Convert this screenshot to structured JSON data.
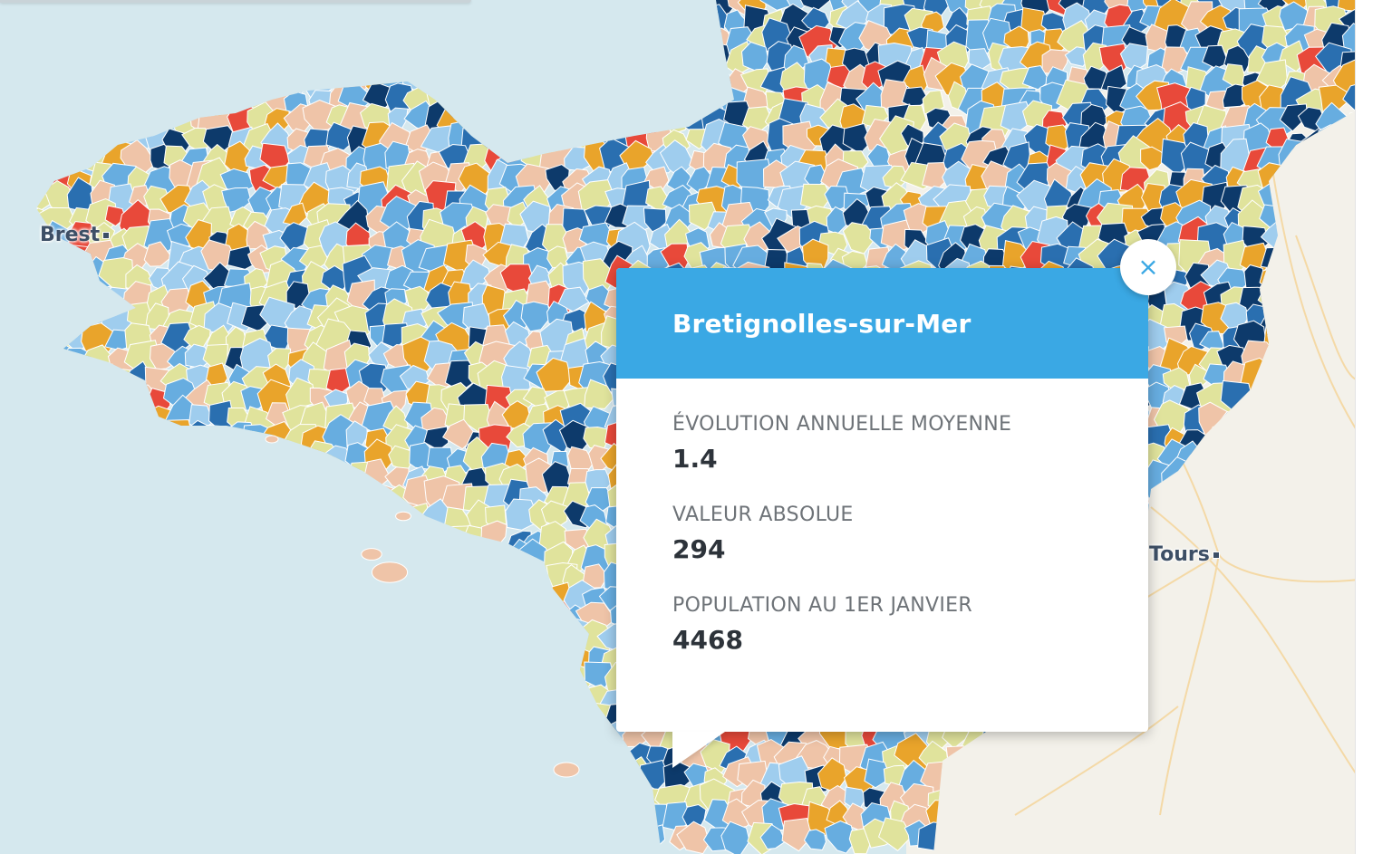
{
  "map": {
    "cities": [
      {
        "name": "Brest"
      },
      {
        "name": "Tours"
      }
    ],
    "colors": {
      "sea": "#d5e8ee",
      "land": "#f3f1ea",
      "roads": "#f4d9a6",
      "border": "#ffffff",
      "classes": [
        "#0d3a6b",
        "#2a6fb0",
        "#67ade0",
        "#9fcdee",
        "#e0e39c",
        "#efc4a8",
        "#e9a42b",
        "#e8493a"
      ]
    }
  },
  "popup": {
    "title": "Bretignolles-sur-Mer",
    "close_label": "×",
    "close_icon": "close-icon",
    "fields": [
      {
        "label": "ÉVOLUTION ANNUELLE MOYENNE",
        "value": "1.4"
      },
      {
        "label": "VALEUR ABSOLUE",
        "value": "294"
      },
      {
        "label": "POPULATION AU 1ER JANVIER",
        "value": "4468"
      }
    ]
  }
}
